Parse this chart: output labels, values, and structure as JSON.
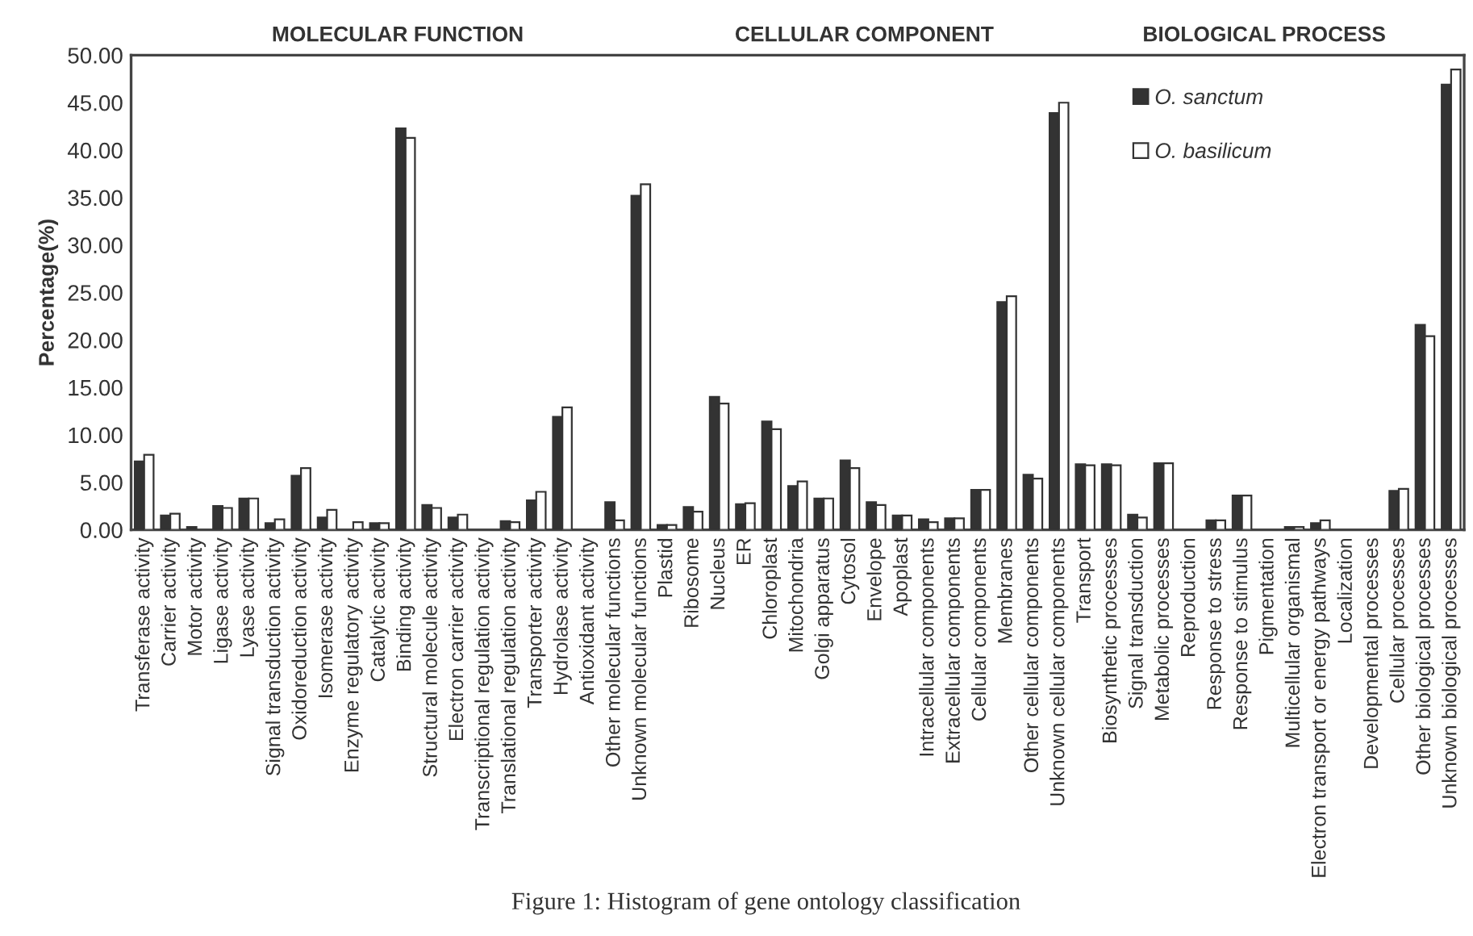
{
  "chart_data": {
    "type": "bar",
    "ylabel": "Percentage(%)",
    "categories": [
      "Transferase activity",
      "Carrier activity",
      "Motor activity",
      "Ligase activity",
      "Lyase activity",
      "Signal transduction activity",
      "Oxidoreduction activity",
      "Isomerase activity",
      "Enzyme regulatory activity",
      "Catalytic activity",
      "Binding activity",
      "Structural molecule activity",
      "Electron carrier activity",
      "Transcriptional regulation activity",
      "Translational regulation activity",
      "Transporter activity",
      "Hydrolase activity",
      "Antioxidant activity",
      "Other molecular functions",
      "Unknown molecular functions",
      "Plastid",
      "Ribosome",
      "Nucleus",
      "ER",
      "Chloroplast",
      "Mitochondria",
      "Golgi apparatus",
      "Cytosol",
      "Envelope",
      "Apoplast",
      "Intracellular components",
      "Extracellular components",
      "Cellular components",
      "Membranes",
      "Other cellular components",
      "Unknown cellular components",
      "Transport",
      "Biosynthetic processes",
      "Signal transduction",
      "Metabolic processes",
      "Reproduction",
      "Response to stress",
      "Response to stimulus",
      "Pigmentation",
      "Multicellular organismal",
      "Electron transport or energy pathways",
      "Localization",
      "Developmental processes",
      "Cellular processes",
      "Other biological processes",
      "Unknown biological processes"
    ],
    "series": [
      {
        "name": "O. sanctum",
        "color": "#333333",
        "values": [
          7.2,
          1.5,
          0.3,
          2.5,
          3.3,
          0.7,
          5.7,
          1.3,
          0,
          0.7,
          42.3,
          2.6,
          1.3,
          0,
          0.9,
          3.1,
          11.9,
          0,
          2.9,
          35.2,
          0.5,
          2.4,
          14.0,
          2.7,
          11.4,
          4.6,
          3.3,
          7.3,
          2.9,
          1.5,
          1.1,
          1.2,
          4.2,
          24.0,
          5.8,
          43.9,
          6.9,
          6.9,
          1.6,
          7.0,
          0,
          1.0,
          3.6,
          0,
          0.3,
          0.7,
          0,
          0,
          4.1,
          21.6,
          46.9
        ]
      },
      {
        "name": "O. basilicum",
        "color": "#ffffff",
        "values": [
          7.9,
          1.7,
          null,
          2.3,
          3.3,
          1.1,
          6.5,
          2.1,
          0.8,
          0.7,
          41.3,
          2.3,
          1.6,
          0,
          0.8,
          4.0,
          12.9,
          0,
          1.0,
          36.4,
          0.5,
          1.9,
          13.3,
          2.8,
          10.6,
          5.1,
          3.3,
          6.5,
          2.6,
          1.5,
          0.8,
          1.2,
          4.2,
          24.6,
          5.4,
          45.0,
          6.8,
          6.8,
          1.3,
          7.0,
          0,
          1.0,
          3.6,
          0,
          0.3,
          1.0,
          0,
          0,
          4.3,
          20.4,
          48.5
        ]
      }
    ],
    "ylim": [
      0,
      50
    ],
    "yticks": [
      {
        "value": 0,
        "label": "0.00"
      },
      {
        "value": 5,
        "label": "5.00"
      },
      {
        "value": 10,
        "label": "10.00"
      },
      {
        "value": 15,
        "label": "15.00"
      },
      {
        "value": 20,
        "label": "20.00"
      },
      {
        "value": 25,
        "label": "25.00"
      },
      {
        "value": 30,
        "label": "30.00"
      },
      {
        "value": 35,
        "label": "35.00"
      },
      {
        "value": 40,
        "label": "40.00"
      },
      {
        "value": 45,
        "label": "45.00"
      },
      {
        "value": 50,
        "label": "50.00"
      }
    ],
    "legend": "top right",
    "grid": false,
    "annotations": [
      "MOLECULAR FUNCTION",
      "CELLULAR COMPONENT",
      "BIOLOGICAL PROCESS",
      "Figure 1: Histogram of gene ontology classification"
    ]
  }
}
